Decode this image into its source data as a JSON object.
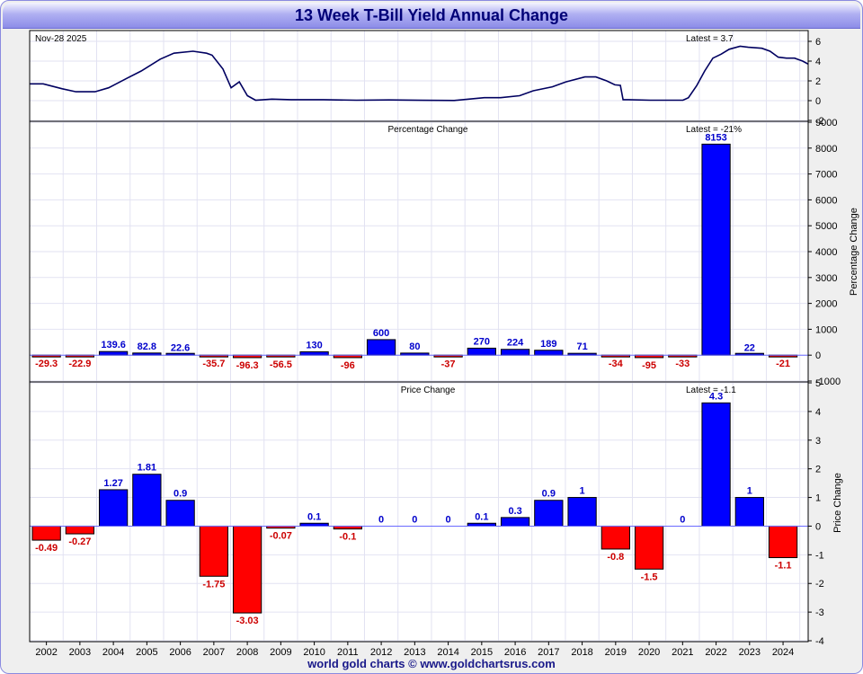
{
  "title": "13 Week T-Bill Yield Annual Change",
  "footer": "world gold charts © www.goldchartsrus.com",
  "colors": {
    "positive": "#0000ff",
    "negative": "#ff0000",
    "positive_label": "#0000cc",
    "negative_label": "#cc0000",
    "line": "#000060",
    "grid": "#e2e2f2",
    "title_text": "#000077"
  },
  "chart_data": [
    {
      "type": "line",
      "date_label": "Nov-28  2025",
      "latest_label": "Latest = 3.7",
      "ylim": [
        -2,
        7
      ],
      "yticks": [
        -2,
        0,
        2,
        4,
        6
      ],
      "x_start": "2002-01",
      "x_end": "2025-11",
      "grid": true,
      "series": [
        {
          "x": [
            "2002-01",
            "2002-06",
            "2003-01",
            "2003-06",
            "2004-01",
            "2004-06",
            "2005-01",
            "2005-06",
            "2006-01",
            "2006-06",
            "2007-01",
            "2007-06",
            "2007-08",
            "2007-12",
            "2008-03",
            "2008-06",
            "2008-09",
            "2008-12",
            "2009-06",
            "2010-01",
            "2011-01",
            "2012-01",
            "2013-01",
            "2014-01",
            "2015-01",
            "2015-12",
            "2016-06",
            "2017-01",
            "2017-06",
            "2018-01",
            "2018-06",
            "2019-01",
            "2019-05",
            "2019-09",
            "2019-12",
            "2020-02",
            "2020-03",
            "2020-05",
            "2021-01",
            "2022-01",
            "2022-03",
            "2022-06",
            "2022-09",
            "2022-12",
            "2023-03",
            "2023-06",
            "2023-10",
            "2024-01",
            "2024-06",
            "2024-09",
            "2024-12",
            "2025-03",
            "2025-06",
            "2025-09",
            "2025-11"
          ],
          "values": [
            1.7,
            1.7,
            1.2,
            0.9,
            0.9,
            1.3,
            2.3,
            3.0,
            4.2,
            4.8,
            5.0,
            4.8,
            4.6,
            3.2,
            1.3,
            1.9,
            0.5,
            0.05,
            0.15,
            0.1,
            0.1,
            0.05,
            0.07,
            0.04,
            0.02,
            0.3,
            0.3,
            0.5,
            1.0,
            1.4,
            1.9,
            2.4,
            2.4,
            2.0,
            1.6,
            1.55,
            0.1,
            0.1,
            0.05,
            0.05,
            0.3,
            1.5,
            3.0,
            4.3,
            4.7,
            5.2,
            5.5,
            5.4,
            5.3,
            5.0,
            4.4,
            4.3,
            4.3,
            4.0,
            3.7
          ]
        }
      ]
    },
    {
      "type": "bar",
      "title": "Percentage Change",
      "latest_label": "Latest = -21%",
      "ylabel": "Percentage Change",
      "ylim": [
        -1000,
        9000
      ],
      "yticks": [
        -1000,
        0,
        1000,
        2000,
        3000,
        4000,
        5000,
        6000,
        7000,
        8000,
        9000
      ],
      "grid": true,
      "categories": [
        "2002",
        "2003",
        "2004",
        "2005",
        "2006",
        "2007",
        "2008",
        "2009",
        "2010",
        "2011",
        "2012",
        "2013",
        "2014",
        "2015",
        "2016",
        "2017",
        "2018",
        "2019",
        "2020",
        "2021",
        "2022",
        "2023",
        "2024"
      ],
      "values": [
        -29.3,
        -22.9,
        139.6,
        82.8,
        22.6,
        -35.7,
        -96.3,
        -56.5,
        130,
        -96,
        600,
        80,
        -37,
        270,
        224,
        189,
        71,
        -34,
        -95,
        -33,
        8153,
        22,
        -21
      ],
      "labels": [
        "-29.3",
        "-22.9",
        "139.6",
        "82.8",
        "22.6",
        "-35.7",
        "-96.3",
        "-56.5",
        "130",
        "-96",
        "600",
        "80",
        "-37",
        "270",
        "224",
        "189",
        "71",
        "-34",
        "-95",
        "-33",
        "8153",
        "22",
        "-21"
      ]
    },
    {
      "type": "bar",
      "title": "Price Change",
      "latest_label": "Latest = -1.1",
      "ylabel": "Price Change",
      "ylim": [
        -4,
        5
      ],
      "yticks": [
        -4,
        -3,
        -2,
        -1,
        0,
        1,
        2,
        3,
        4,
        5
      ],
      "grid": true,
      "categories": [
        "2002",
        "2003",
        "2004",
        "2005",
        "2006",
        "2007",
        "2008",
        "2009",
        "2010",
        "2011",
        "2012",
        "2013",
        "2014",
        "2015",
        "2016",
        "2017",
        "2018",
        "2019",
        "2020",
        "2021",
        "2022",
        "2023",
        "2024"
      ],
      "values": [
        -0.49,
        -0.27,
        1.27,
        1.81,
        0.9,
        -1.75,
        -3.03,
        -0.07,
        0.1,
        -0.1,
        0,
        0,
        0,
        0.1,
        0.3,
        0.9,
        1,
        -0.8,
        -1.5,
        0,
        4.3,
        1,
        -1.1
      ],
      "labels": [
        "-0.49",
        "-0.27",
        "1.27",
        "1.81",
        "0.9",
        "-1.75",
        "-3.03",
        "-0.07",
        "0.1",
        "-0.1",
        "0",
        "0",
        "0",
        "0.1",
        "0.3",
        "0.9",
        "1",
        "-0.8",
        "-1.5",
        "0",
        "4.3",
        "1",
        "-1.1"
      ]
    }
  ]
}
